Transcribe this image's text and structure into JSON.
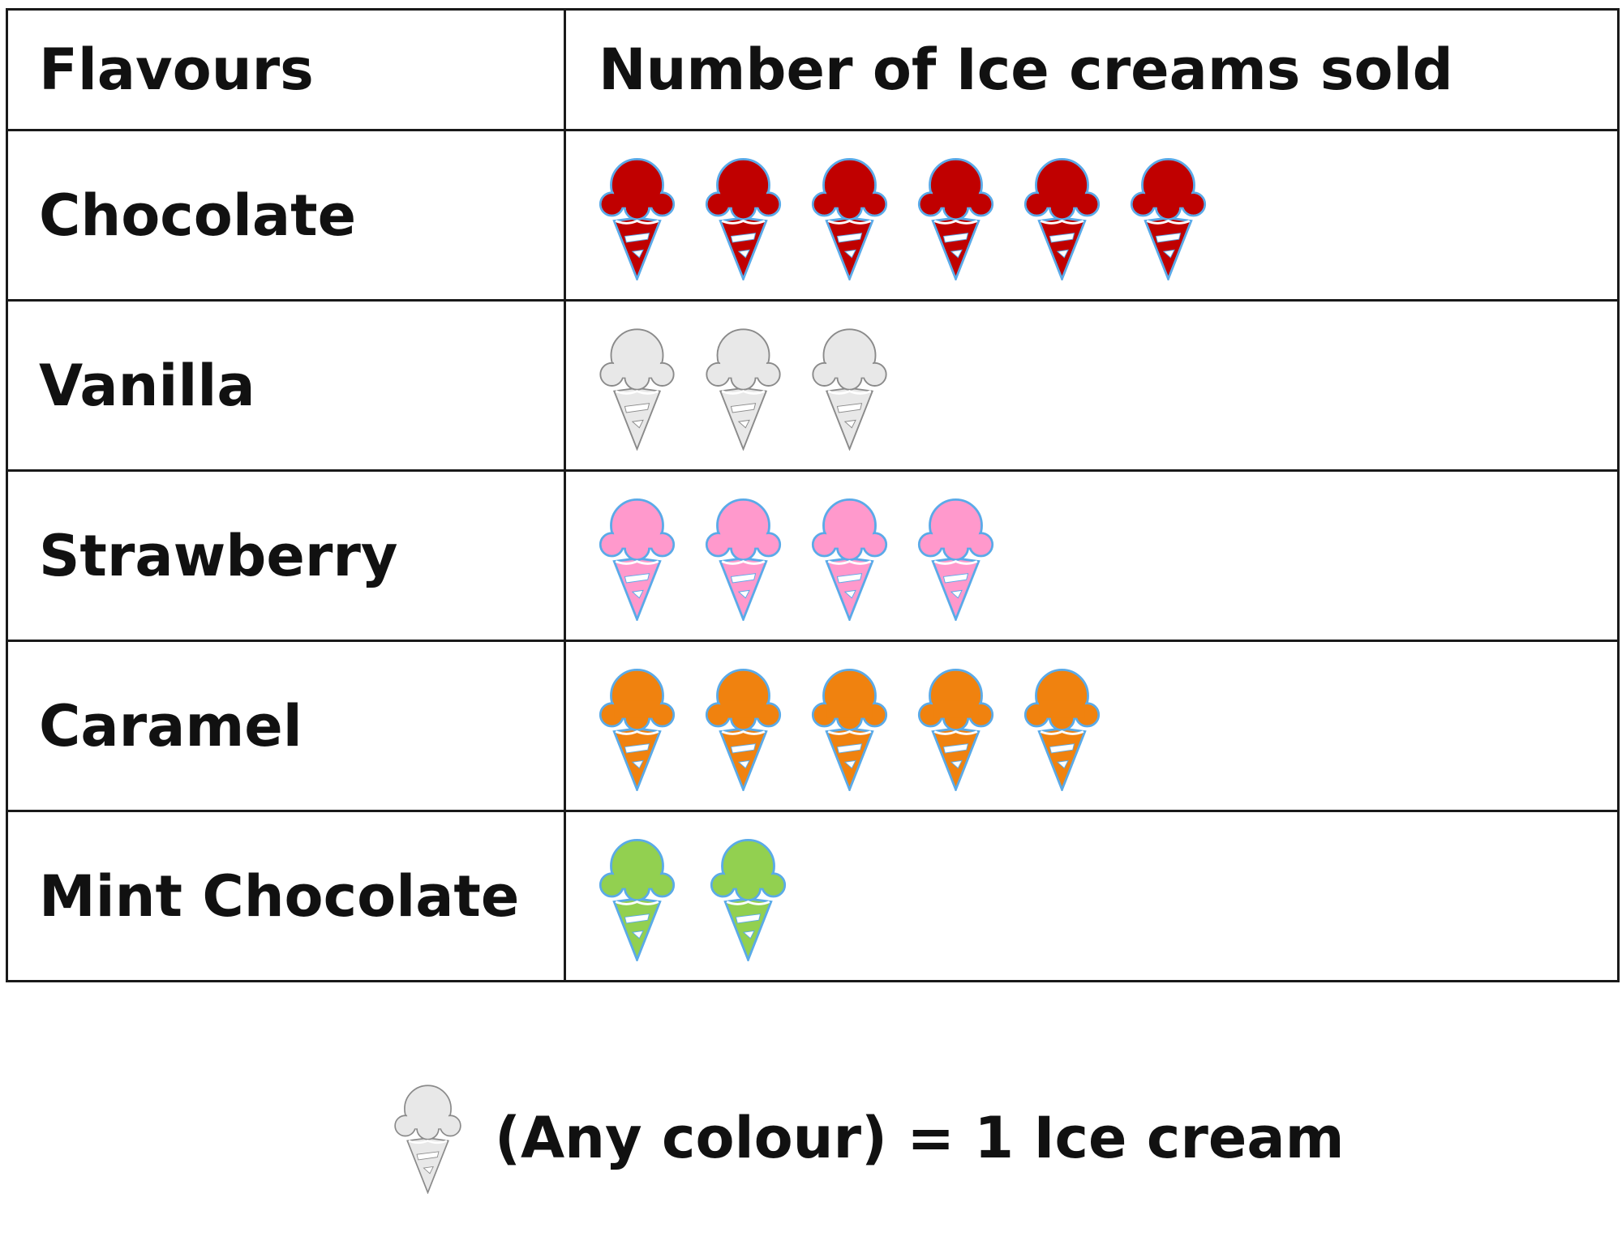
{
  "chart_data": {
    "type": "pictograph",
    "columns": [
      "Flavours",
      "Number of Ice creams sold"
    ],
    "categories": [
      "Chocolate",
      "Vanilla",
      "Strawberry",
      "Caramel",
      "Mint Chocolate"
    ],
    "values": [
      6,
      3,
      4,
      5,
      2
    ],
    "colors": [
      "#c00000",
      "#e8e8e8",
      "#ff99cc",
      "#f0820f",
      "#92d050"
    ],
    "icon": "ice-cream-cone-icon",
    "key": {
      "text": "(Any colour) = 1 Ice cream",
      "value": 1,
      "color": "#e8e8e8"
    }
  }
}
